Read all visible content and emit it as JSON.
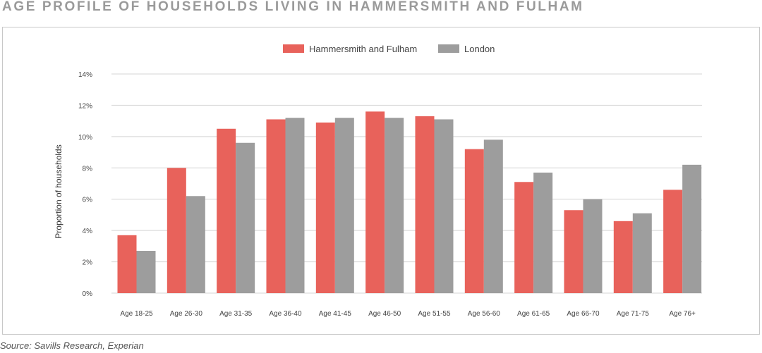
{
  "title": "AGE PROFILE OF HOUSEHOLDS LIVING IN HAMMERSMITH AND FULHAM",
  "source": "Source: Savills Research, Experian",
  "colors": {
    "hf": "#e8625b",
    "london": "#9d9d9d",
    "grid": "#d4d4d4",
    "frame": "#c8c8c8"
  },
  "chart_data": {
    "type": "bar",
    "title": "AGE PROFILE OF HOUSEHOLDS LIVING IN HAMMERSMITH AND FULHAM",
    "ylabel": "Proportion of households",
    "xlabel": "",
    "ylim": [
      0,
      14
    ],
    "yticks": [
      0,
      2,
      4,
      6,
      8,
      10,
      12,
      14
    ],
    "ytick_labels": [
      "0%",
      "2%",
      "4%",
      "6%",
      "8%",
      "10%",
      "12%",
      "14%"
    ],
    "grid": true,
    "legend_position": "top-center",
    "categories": [
      "Age 18-25",
      "Age 26-30",
      "Age 31-35",
      "Age 36-40",
      "Age 41-45",
      "Age 46-50",
      "Age 51-55",
      "Age 56-60",
      "Age 61-65",
      "Age 66-70",
      "Age 71-75",
      "Age 76+"
    ],
    "series": [
      {
        "name": "Hammersmith and Fulham",
        "color": "#e8625b",
        "values": [
          3.7,
          8.0,
          10.5,
          11.1,
          10.9,
          11.6,
          11.3,
          9.2,
          7.1,
          5.3,
          4.6,
          6.6
        ]
      },
      {
        "name": "London",
        "color": "#9d9d9d",
        "values": [
          2.7,
          6.2,
          9.6,
          11.2,
          11.2,
          11.2,
          11.1,
          9.8,
          7.7,
          6.0,
          5.1,
          8.2
        ]
      }
    ]
  }
}
